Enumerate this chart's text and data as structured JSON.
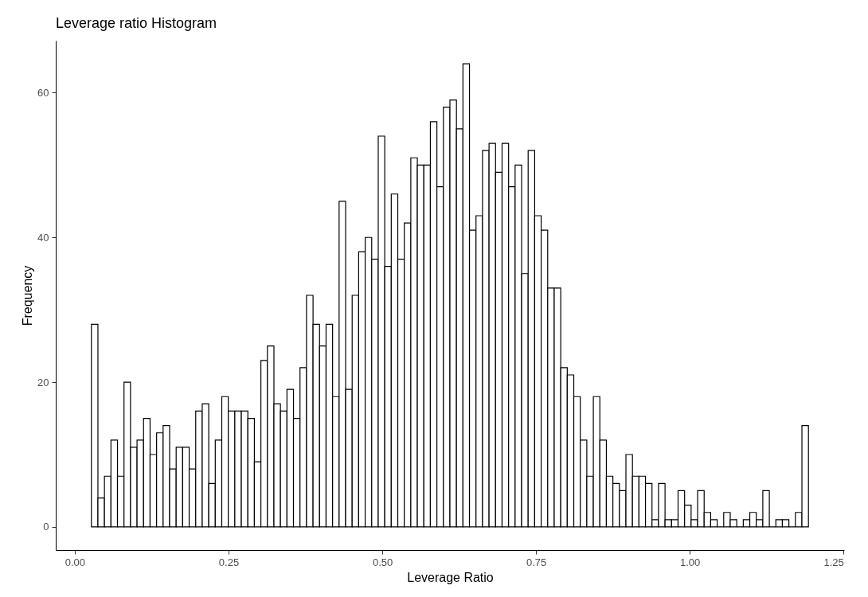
{
  "chart_data": {
    "type": "histogram",
    "title": "Leverage ratio Histogram",
    "xlabel": "Leverage Ratio",
    "ylabel": "Frequency",
    "bins": [
      0.027,
      0.0376,
      0.0482,
      0.0588,
      0.0694,
      0.08,
      0.0906,
      0.1012,
      0.1118,
      0.1224,
      0.133,
      0.1436,
      0.1542,
      0.1648,
      0.1754,
      0.186,
      0.1966,
      0.2072,
      0.2178,
      0.2284,
      0.239,
      0.2496,
      0.2602,
      0.2708,
      0.2814,
      0.292,
      0.3026,
      0.3132,
      0.3238,
      0.3344,
      0.345,
      0.3556,
      0.3662,
      0.3768,
      0.3874,
      0.398,
      0.4086,
      0.4192,
      0.4298,
      0.4404,
      0.451,
      0.4616,
      0.4722,
      0.4828,
      0.4934,
      0.504,
      0.5146,
      0.5252,
      0.5358,
      0.5464,
      0.557,
      0.5676,
      0.5782,
      0.5888,
      0.5994,
      0.61,
      0.6206,
      0.6312,
      0.6418,
      0.6524,
      0.663,
      0.6736,
      0.6842,
      0.6948,
      0.7054,
      0.716,
      0.7266,
      0.7372,
      0.7478,
      0.7584,
      0.769,
      0.7796,
      0.7902,
      0.8008,
      0.8114,
      0.822,
      0.8326,
      0.8432,
      0.8538,
      0.8644,
      0.875,
      0.8856,
      0.8962,
      0.9068,
      0.9174,
      0.928,
      0.9386,
      0.9492,
      0.9598,
      0.9704,
      0.981,
      0.9916,
      1.0022,
      1.0128,
      1.0234,
      1.034,
      1.0446,
      1.0552,
      1.0658,
      1.0764,
      1.087,
      1.0976,
      1.1082,
      1.1188,
      1.1294,
      1.14,
      1.1506,
      1.1612,
      1.1718,
      1.1824,
      1.193
    ],
    "values": [
      28,
      4,
      7,
      12,
      7,
      20,
      11,
      12,
      15,
      10,
      13,
      14,
      8,
      11,
      11,
      8,
      16,
      17,
      6,
      12,
      18,
      16,
      16,
      16,
      15,
      9,
      23,
      25,
      17,
      16,
      19,
      15,
      22,
      32,
      28,
      25,
      28,
      18,
      45,
      19,
      32,
      38,
      40,
      37,
      54,
      36,
      46,
      37,
      42,
      51,
      50,
      50,
      56,
      47,
      58,
      59,
      55,
      64,
      41,
      43,
      52,
      53,
      49,
      53,
      47,
      50,
      35,
      52,
      43,
      41,
      33,
      33,
      22,
      21,
      18,
      12,
      7,
      18,
      12,
      7,
      6,
      5,
      10,
      7,
      7,
      6,
      1,
      6,
      1,
      1,
      5,
      3,
      1,
      5,
      2,
      1,
      0,
      2,
      1,
      0,
      1,
      2,
      1,
      5,
      0,
      1,
      1,
      0,
      2,
      14
    ],
    "xlim": [
      -0.031,
      1.251
    ],
    "ylim": [
      -3.2,
      67.2
    ],
    "xticks": [
      {
        "value": 0,
        "label": "0.00"
      },
      {
        "value": 0.25,
        "label": "0.25"
      },
      {
        "value": 0.5,
        "label": "0.50"
      },
      {
        "value": 0.75,
        "label": "0.75"
      },
      {
        "value": 1,
        "label": "1.00"
      },
      {
        "value": 1.25,
        "label": "1.25"
      }
    ],
    "yticks": [
      0,
      20,
      40,
      60
    ]
  }
}
